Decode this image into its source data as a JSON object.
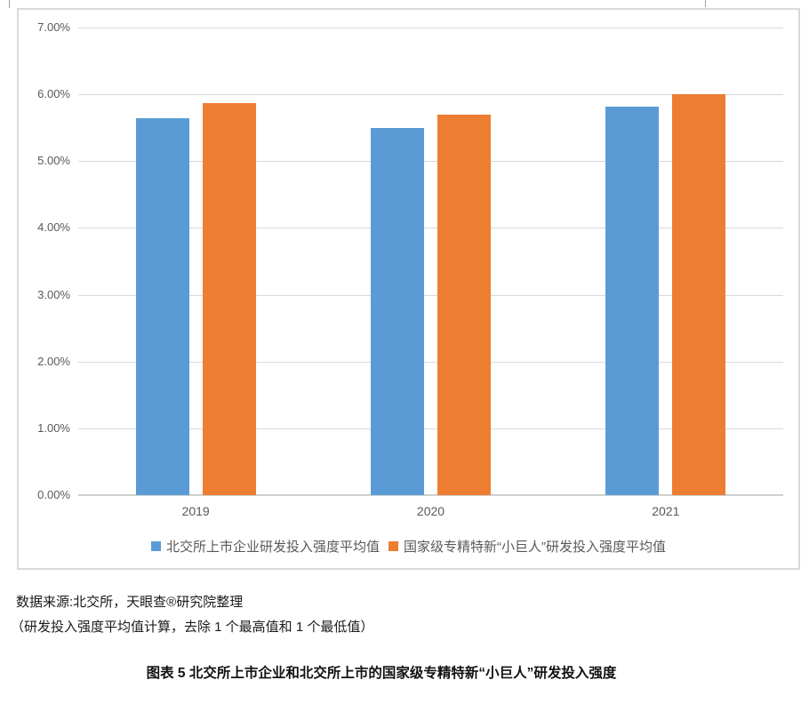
{
  "chart_data": {
    "type": "bar",
    "categories": [
      "2019",
      "2020",
      "2021"
    ],
    "series": [
      {
        "name": "北交所上市企业研发投入强度平均值",
        "color": "#5B9BD5",
        "values": [
          5.64,
          5.49,
          5.81
        ]
      },
      {
        "name": "国家级专精特新“小巨人”研发投入强度平均值",
        "color": "#ED7D31",
        "values": [
          5.87,
          5.69,
          6.0
        ]
      }
    ],
    "title": "",
    "xlabel": "",
    "ylabel": "",
    "ylim": [
      0,
      7
    ],
    "ytick_step": 1,
    "ytick_labels": [
      "0.00%",
      "1.00%",
      "2.00%",
      "3.00%",
      "4.00%",
      "5.00%",
      "6.00%",
      "7.00%"
    ],
    "grid": true,
    "legend_position": "bottom",
    "colors": {
      "series1": "#5B9BD5",
      "series2": "#ED7D31",
      "gridline": "#d9d9d9",
      "axis_text": "#595959"
    }
  },
  "notes": {
    "source": "数据来源:北交所，天眼查®研究院整理",
    "method": "（研发投入强度平均值计算，去除 1 个最高值和 1 个最低值）"
  },
  "caption": "图表 5 北交所上市企业和北交所上市的国家级专精特新“小巨人”研发投入强度"
}
